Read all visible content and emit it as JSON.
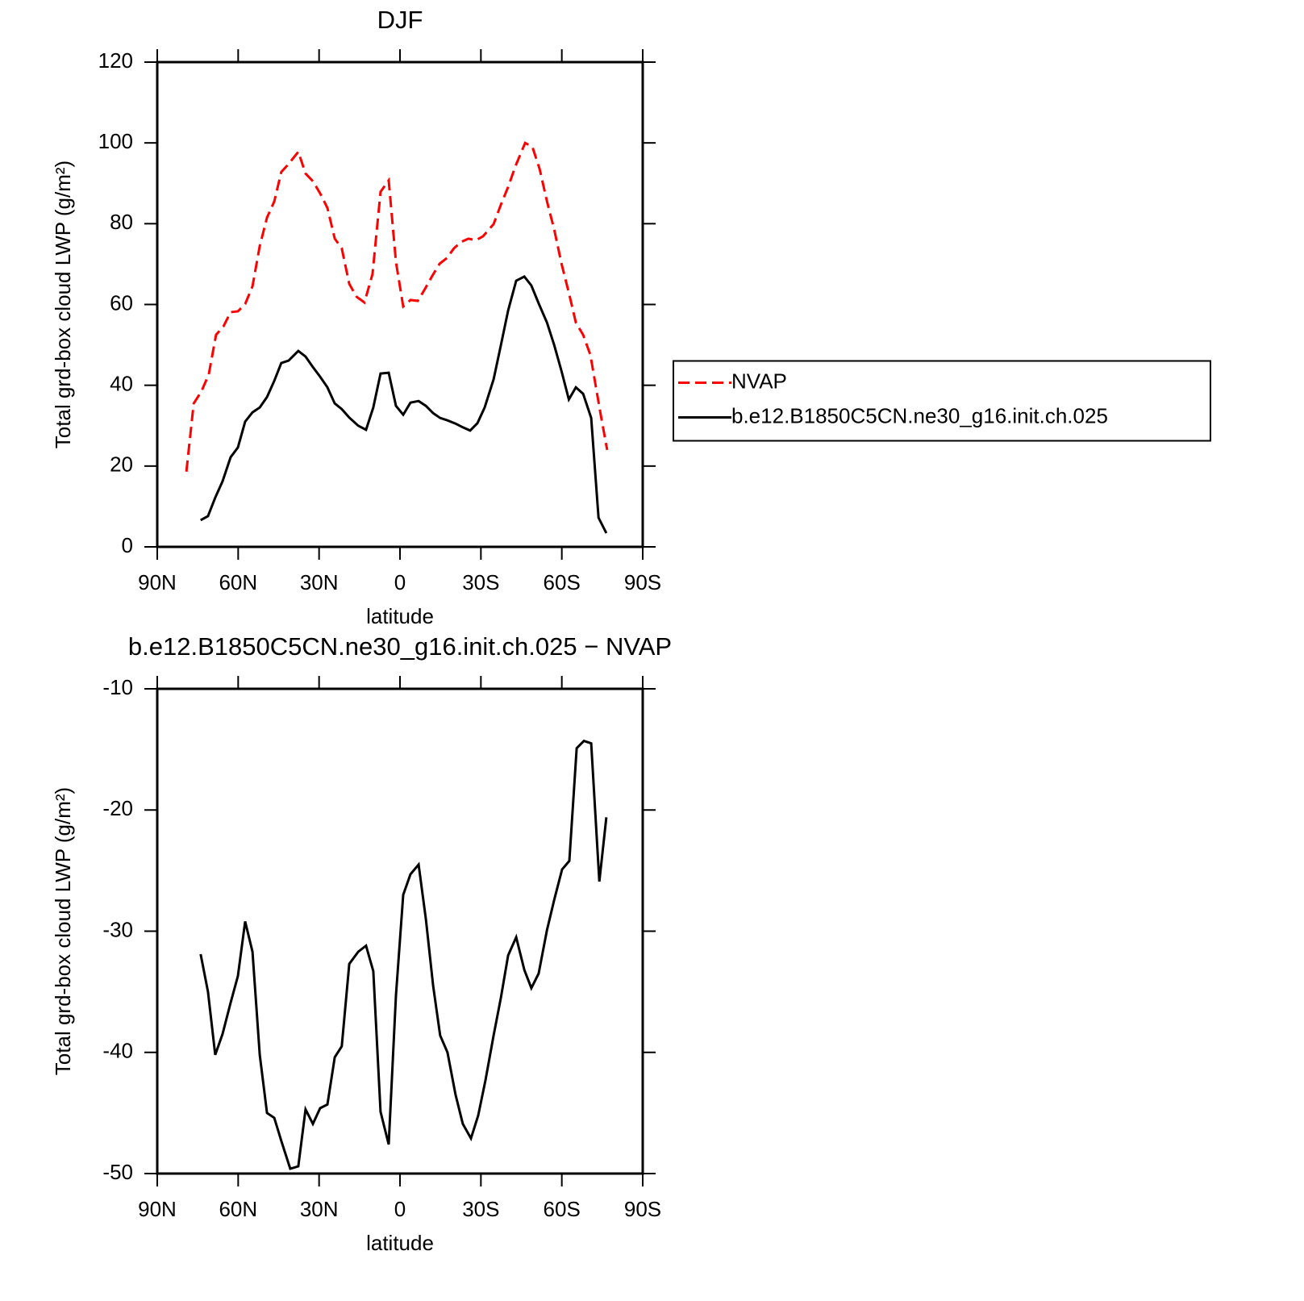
{
  "chart_data": [
    {
      "type": "line",
      "title": "DJF",
      "xlabel": "latitude",
      "ylabel": "Total grd-box cloud LWP (g/m²)",
      "xlim": [
        90,
        -90
      ],
      "xticks": [
        {
          "value": 90,
          "label": "90N"
        },
        {
          "value": 60,
          "label": "60N"
        },
        {
          "value": 30,
          "label": "30N"
        },
        0,
        {
          "value": -30,
          "label": "30S"
        },
        {
          "value": -60,
          "label": "60S"
        },
        {
          "value": -90,
          "label": "90S"
        }
      ],
      "ylim": [
        0,
        120
      ],
      "yticks": [
        0,
        20,
        40,
        60,
        80,
        100,
        120
      ],
      "legend": "right",
      "series": [
        {
          "name": "NVAP",
          "color": "#ff0000",
          "dash": "dashed",
          "x": [
            79.2,
            76.5,
            73.6,
            70.9,
            68.2,
            65.5,
            62.8,
            60.1,
            57.4,
            54.7,
            52.0,
            49.3,
            46.6,
            44.0,
            41.3,
            37.7,
            35.0,
            32.3,
            29.6,
            26.9,
            24.2,
            21.6,
            18.8,
            16.1,
            13.2,
            10.2,
            7.2,
            4.2,
            1.5,
            -1.2,
            -3.9,
            -6.6,
            -9.3,
            -12.0,
            -14.7,
            -17.4,
            -20.0,
            -22.7,
            -25.4,
            -28.1,
            -30.8,
            -34.7,
            -37.4,
            -40.1,
            -42.8,
            -46.4,
            -49.1,
            -51.8,
            -54.5,
            -57.2,
            -59.9,
            -62.6,
            -65.2,
            -67.9,
            -70.6,
            -74.2,
            -76.8
          ],
          "values": [
            18.6,
            35.5,
            38.5,
            42.7,
            52.5,
            54.5,
            58.1,
            58.3,
            60.1,
            64.5,
            74.5,
            81.5,
            85.5,
            92.8,
            94.8,
            97.8,
            92.4,
            90.5,
            87.5,
            83.9,
            76.3,
            73.9,
            65.1,
            61.9,
            60.5,
            67.5,
            87.9,
            90.7,
            70.5,
            59.5,
            61.1,
            60.9,
            63.9,
            67.1,
            70.1,
            71.5,
            73.9,
            75.5,
            76.3,
            75.9,
            76.9,
            79.9,
            84.7,
            89.1,
            94.2,
            100.0,
            99.0,
            93.5,
            85.5,
            78.5,
            70.1,
            62.9,
            55.5,
            52.5,
            47.5,
            33.5,
            24.0
          ]
        },
        {
          "name": "b.e12.B1850C5CN.ne30_g16.init.ch.025",
          "color": "#000000",
          "dash": "solid",
          "x": [
            73.9,
            71.2,
            68.5,
            65.8,
            62.8,
            60.1,
            57.4,
            54.7,
            52.0,
            49.3,
            46.6,
            44.0,
            41.3,
            37.7,
            35.0,
            32.3,
            29.6,
            26.9,
            24.2,
            21.6,
            18.8,
            15.5,
            12.6,
            9.9,
            7.2,
            4.2,
            1.5,
            -1.2,
            -3.9,
            -6.9,
            -9.6,
            -12.3,
            -14.9,
            -17.6,
            -20.6,
            -23.3,
            -26.0,
            -28.7,
            -31.4,
            -34.7,
            -37.4,
            -40.1,
            -43.1,
            -46.1,
            -48.7,
            -51.4,
            -54.5,
            -57.2,
            -59.9,
            -62.6,
            -65.2,
            -67.9,
            -70.9,
            -73.6,
            -76.5
          ],
          "values": [
            6.6,
            7.6,
            12.2,
            16.2,
            22.2,
            24.6,
            31.0,
            33.3,
            34.5,
            37.1,
            41.1,
            45.5,
            46.1,
            48.5,
            47.1,
            44.5,
            42.1,
            39.5,
            35.5,
            34.1,
            32.0,
            30.0,
            29.0,
            34.5,
            42.9,
            43.1,
            34.9,
            32.7,
            35.7,
            36.1,
            34.9,
            33.1,
            31.9,
            31.3,
            30.5,
            29.6,
            28.8,
            30.6,
            34.5,
            41.5,
            49.9,
            58.5,
            65.9,
            66.9,
            64.7,
            60.3,
            55.5,
            49.9,
            43.5,
            36.5,
            39.5,
            37.9,
            31.9,
            7.2,
            3.4
          ]
        }
      ]
    },
    {
      "type": "line",
      "title": "b.e12.B1850C5CN.ne30_g16.init.ch.025 − NVAP",
      "xlabel": "latitude",
      "ylabel": "Total grd-box cloud LWP (g/m²)",
      "xlim": [
        90,
        -90
      ],
      "xticks": [
        {
          "value": 90,
          "label": "90N"
        },
        {
          "value": 60,
          "label": "60N"
        },
        {
          "value": 30,
          "label": "30N"
        },
        0,
        {
          "value": -30,
          "label": "30S"
        },
        {
          "value": -60,
          "label": "60S"
        },
        {
          "value": -90,
          "label": "90S"
        }
      ],
      "ylim": [
        -50,
        -10
      ],
      "yticks": [
        -50,
        -40,
        -30,
        -20,
        -10
      ],
      "series": [
        {
          "color": "#000000",
          "dash": "solid",
          "x": [
            73.9,
            71.2,
            68.5,
            65.8,
            62.8,
            60.1,
            57.4,
            54.7,
            52.0,
            49.3,
            46.6,
            44.0,
            40.7,
            37.7,
            35.0,
            32.3,
            29.6,
            26.9,
            24.2,
            21.6,
            18.8,
            15.5,
            12.6,
            9.9,
            7.2,
            4.2,
            1.5,
            -1.2,
            -3.9,
            -6.9,
            -9.6,
            -12.3,
            -14.9,
            -17.6,
            -20.6,
            -23.3,
            -26.3,
            -29.0,
            -31.7,
            -34.7,
            -37.4,
            -40.1,
            -43.1,
            -46.1,
            -48.7,
            -51.4,
            -54.5,
            -57.2,
            -60.1,
            -62.8,
            -65.5,
            -68.2,
            -70.9,
            -73.9,
            -76.5
          ],
          "values": [
            -31.9,
            -35.0,
            -40.2,
            -38.5,
            -35.9,
            -33.7,
            -29.2,
            -31.7,
            -40.2,
            -45.0,
            -45.4,
            -47.3,
            -49.6,
            -49.4,
            -44.7,
            -45.9,
            -44.6,
            -44.3,
            -40.4,
            -39.5,
            -32.7,
            -31.7,
            -31.2,
            -33.3,
            -44.9,
            -47.6,
            -35.3,
            -27.0,
            -25.3,
            -24.5,
            -29.0,
            -34.5,
            -38.6,
            -40.0,
            -43.5,
            -45.9,
            -47.1,
            -45.2,
            -42.3,
            -38.6,
            -35.5,
            -32.0,
            -30.5,
            -33.2,
            -34.7,
            -33.5,
            -29.9,
            -27.4,
            -24.9,
            -24.2,
            -14.9,
            -14.3,
            -14.5,
            -25.9,
            -20.6
          ]
        }
      ]
    }
  ]
}
